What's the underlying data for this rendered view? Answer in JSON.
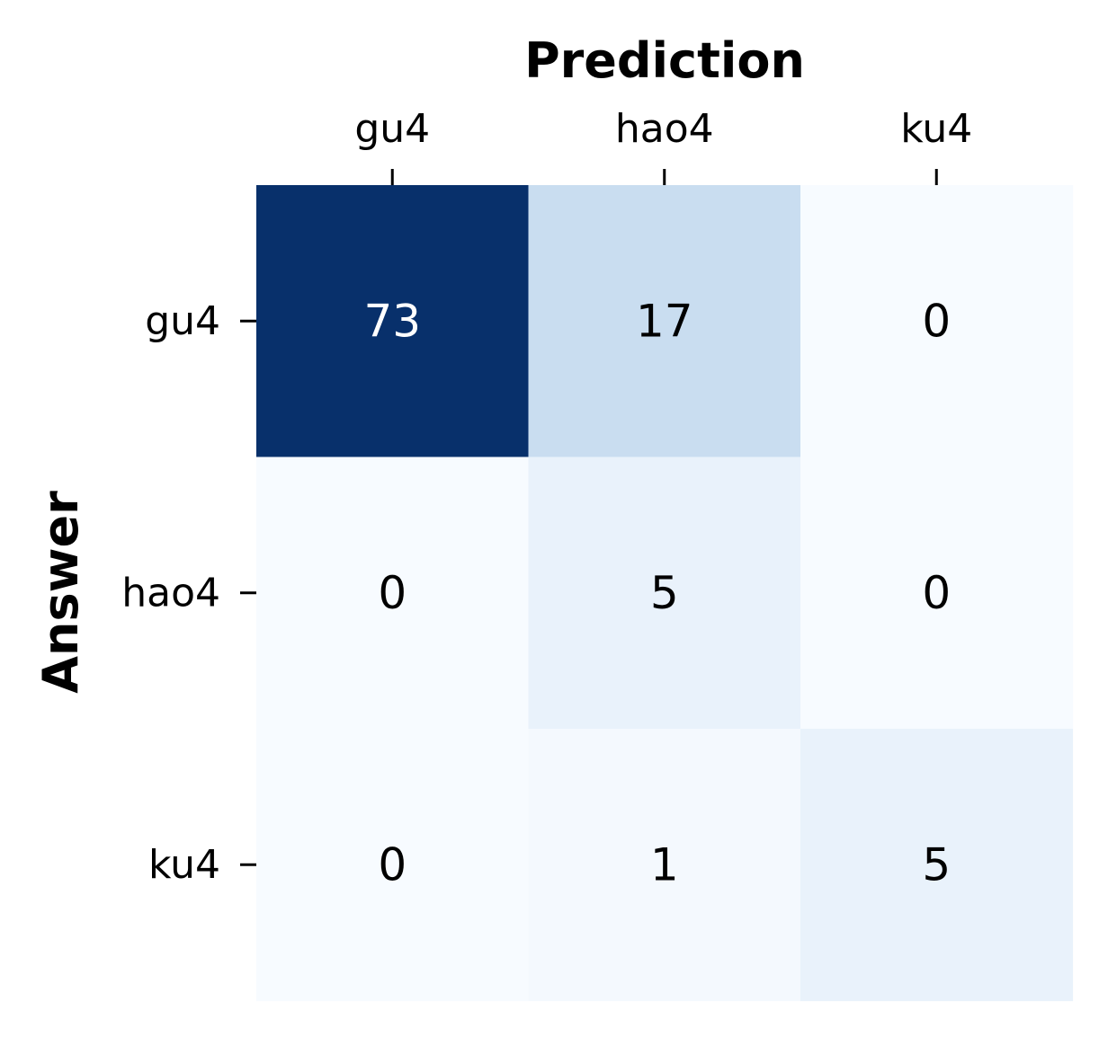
{
  "chart_data": {
    "type": "heatmap",
    "title": "",
    "xlabel": "Prediction",
    "ylabel": "Answer",
    "x_categories": [
      "gu4",
      "hao4",
      "ku4"
    ],
    "y_categories": [
      "gu4",
      "hao4",
      "ku4"
    ],
    "values": [
      [
        73,
        17,
        0
      ],
      [
        0,
        5,
        0
      ],
      [
        0,
        1,
        5
      ]
    ],
    "colormap": "Blues",
    "colorbar": false,
    "xaxis_position": "top",
    "grid": false,
    "colors": {
      "low": "#f7fbff",
      "high": "#08306b",
      "text_dark": "#000000",
      "text_light": "#ffffff"
    }
  }
}
